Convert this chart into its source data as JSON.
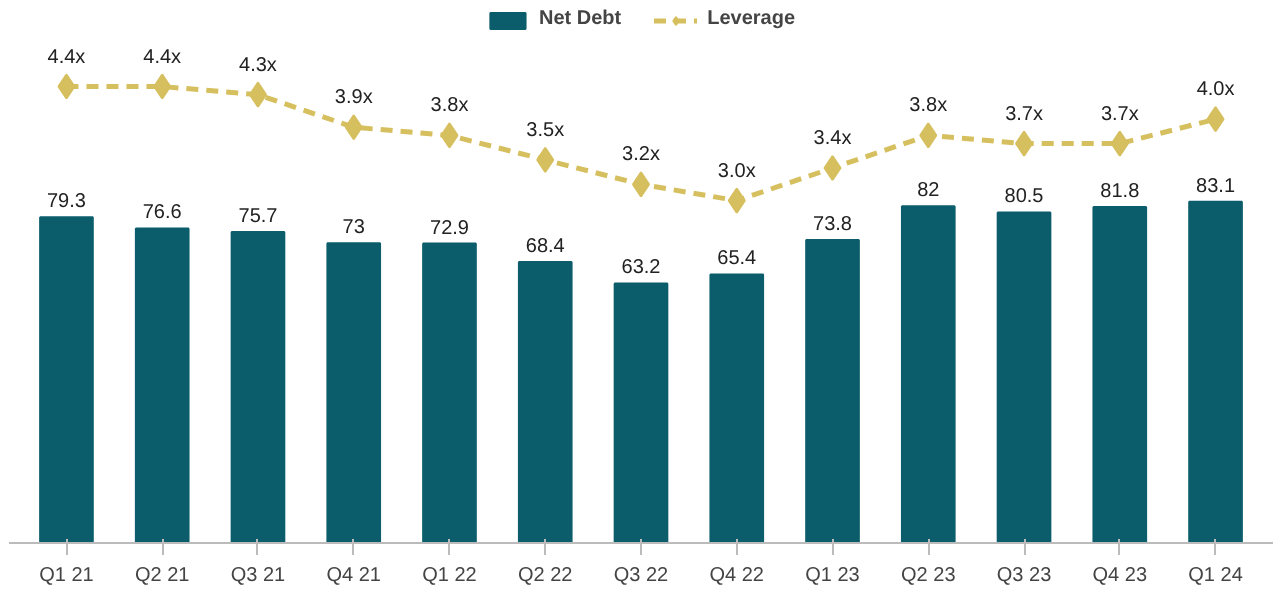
{
  "chart_data": {
    "type": "bar",
    "categories": [
      "Q1 21",
      "Q2 21",
      "Q3 21",
      "Q4 21",
      "Q1 22",
      "Q2 22",
      "Q3 22",
      "Q4 22",
      "Q1 23",
      "Q2 23",
      "Q3 23",
      "Q4 23",
      "Q1 24"
    ],
    "series": [
      {
        "name": "Net Debt",
        "color": "#0b5d6b",
        "values": [
          79.3,
          76.6,
          75.7,
          73,
          72.9,
          68.4,
          63.2,
          65.4,
          73.8,
          82,
          80.5,
          81.8,
          83.1
        ]
      },
      {
        "name": "Leverage",
        "type": "line",
        "axis": "y2",
        "color": "#d6bf5e",
        "line_style": "dashed",
        "marker": "diamond",
        "values": [
          4.4,
          4.4,
          4.3,
          3.9,
          3.8,
          3.5,
          3.2,
          3.0,
          3.4,
          3.8,
          3.7,
          3.7,
          4.0
        ],
        "value_labels": [
          "4.4x",
          "4.4x",
          "4.3x",
          "3.9x",
          "3.8x",
          "3.5x",
          "3.2x",
          "3.0x",
          "3.4x",
          "3.8x",
          "3.7x",
          "3.7x",
          "4.0x"
        ]
      }
    ],
    "ylim": [
      0,
      131
    ],
    "y2lim": [
      -1.2,
      5.4
    ],
    "tick_labels": "x",
    "grid": false,
    "legend": "top",
    "data_labels": true
  }
}
